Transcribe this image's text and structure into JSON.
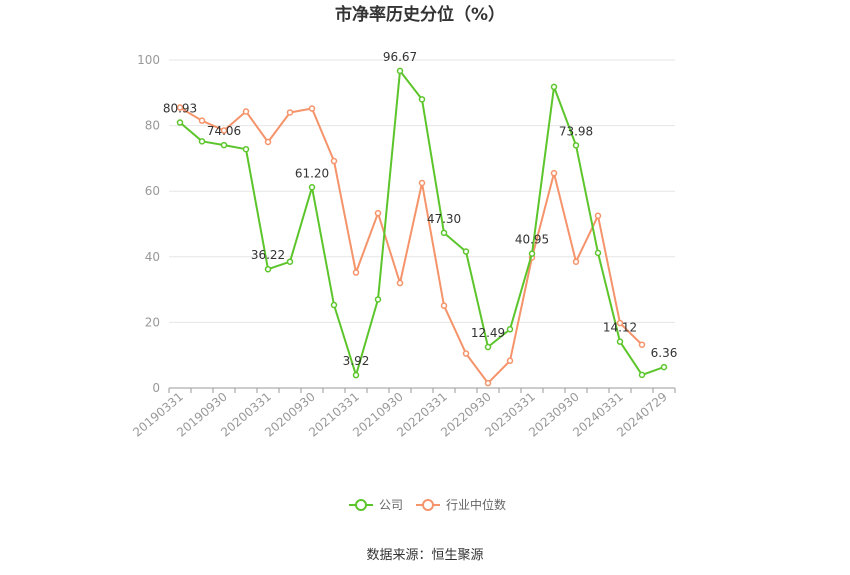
{
  "chart_data": {
    "type": "line",
    "title": "市净率历史分位（%）",
    "source": "数据来源：恒生聚源",
    "ylim": [
      0,
      100
    ],
    "yticks": [
      "0",
      "20",
      "40",
      "60",
      "80",
      "100"
    ],
    "x": [
      "20190331",
      "20190630",
      "20190930",
      "20191231",
      "20200331",
      "20200630",
      "20200930",
      "20201231",
      "20210331",
      "20210630",
      "20210930",
      "20211231",
      "20220331",
      "20220630",
      "20220930",
      "20221231",
      "20230331",
      "20230630",
      "20230930",
      "20231231",
      "20240331",
      "20240630",
      "20240729"
    ],
    "xtick_labels": [
      "20190331",
      "20190930",
      "20200331",
      "20200930",
      "20210331",
      "20210930",
      "20220331",
      "20220930",
      "20230331",
      "20230930",
      "20240331",
      "20240729"
    ],
    "series": [
      {
        "name": "公司",
        "color": "#5cc52b",
        "values": [
          80.93,
          75.2,
          74.06,
          72.8,
          36.22,
          38.5,
          61.2,
          25.3,
          3.92,
          27.0,
          96.67,
          88.0,
          47.3,
          41.6,
          12.49,
          17.9,
          40.95,
          91.8,
          73.98,
          41.2,
          14.12,
          4.0,
          6.36
        ],
        "labels": [
          "80.93",
          null,
          "74.06",
          null,
          "36.22",
          null,
          "61.20",
          null,
          "3.92",
          null,
          "96.67",
          null,
          "47.30",
          null,
          "12.49",
          null,
          "40.95",
          null,
          "73.98",
          null,
          "14.12",
          null,
          "6.36"
        ]
      },
      {
        "name": "行业中位数",
        "color": "#f5936a",
        "values": [
          85.5,
          81.5,
          78.5,
          84.3,
          75.0,
          84.0,
          85.2,
          69.2,
          35.2,
          53.3,
          32.0,
          62.5,
          25.1,
          10.5,
          1.5,
          8.3,
          39.8,
          65.5,
          38.5,
          52.5,
          19.8,
          13.2,
          null
        ]
      }
    ],
    "legend": {
      "position": "bottom-center"
    }
  }
}
